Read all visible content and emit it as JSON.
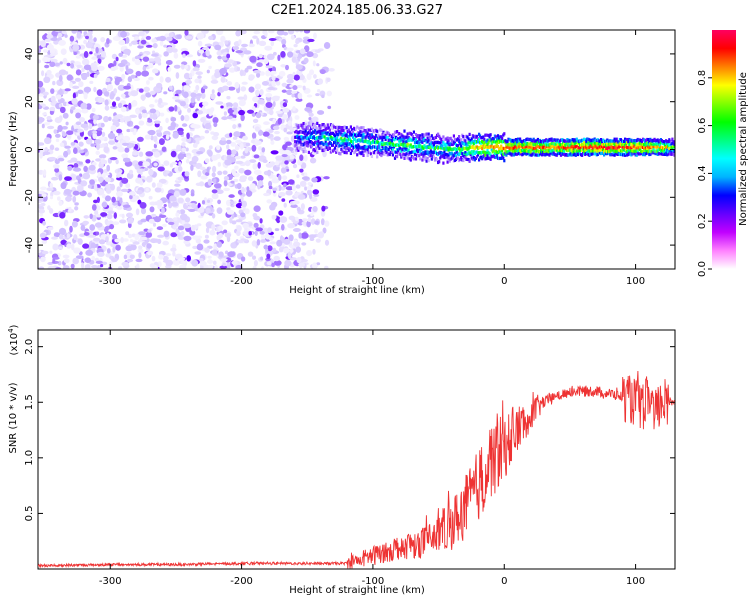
{
  "title": "C2E1.2024.185.06.33.G27",
  "chart_data": [
    {
      "type": "heatmap",
      "xlabel": "Height of straight line (km)",
      "ylabel": "Frequency (Hz)",
      "xlim": [
        -355,
        130
      ],
      "ylim": [
        -50,
        50
      ],
      "xticks": [
        -300,
        -200,
        -100,
        0,
        100
      ],
      "yticks": [
        -40,
        -20,
        0,
        20,
        40
      ],
      "colorbar": {
        "label": "Normalized spectral amplitude",
        "range": [
          0,
          1
        ],
        "ticks": [
          0.0,
          0.2,
          0.4,
          0.6,
          0.8
        ],
        "tick_labels": [
          "0.0",
          "0.2",
          "0.4",
          "0.6",
          "0.8"
        ],
        "colormap": [
          "#ffffff",
          "#c8b4ff",
          "#6400ff",
          "#0000ff",
          "#00ffff",
          "#00ff00",
          "#ffff00",
          "#ff8000",
          "#ff0000",
          "#ff0080"
        ]
      },
      "noise_region": {
        "x": [
          -355,
          -130
        ],
        "level": 0.15
      },
      "signal_track": {
        "x": [
          -160,
          -140,
          -120,
          -100,
          -80,
          -60,
          -40,
          -20,
          0,
          20,
          40,
          60,
          80,
          100,
          120,
          130
        ],
        "freq": [
          5,
          5,
          4,
          3,
          2,
          1,
          0,
          1,
          1,
          1,
          1,
          1,
          1,
          1,
          1,
          1
        ],
        "amplitude": [
          0.3,
          0.45,
          0.5,
          0.45,
          0.55,
          0.5,
          0.5,
          0.7,
          0.8,
          0.8,
          0.8,
          0.85,
          0.9,
          0.8,
          0.75,
          0.5
        ]
      }
    },
    {
      "type": "line",
      "xlabel": "Height of straight line (km)",
      "ylabel": "SNR (10 * v/v)",
      "y_scale_label": "(x10",
      "y_scale_exp": "4",
      "y_scale_close": ")",
      "xlim": [
        -355,
        130
      ],
      "ylim": [
        0,
        2.15
      ],
      "xticks": [
        -300,
        -200,
        -100,
        0,
        100
      ],
      "yticks": [
        0.5,
        1.0,
        1.5,
        2.0
      ],
      "ytick_labels": [
        "0.5",
        "1.0",
        "1.5",
        "2.0"
      ],
      "color": "#ee3333",
      "series": [
        {
          "x": [
            -355,
            -300,
            -250,
            -200,
            -150,
            -120,
            -100,
            -80,
            -60,
            -40,
            -30,
            -20,
            -10,
            -5,
            0,
            10,
            20,
            30,
            40,
            50,
            60,
            70,
            80,
            90,
            100,
            105,
            110,
            115,
            120,
            130
          ],
          "y": [
            0.03,
            0.04,
            0.04,
            0.05,
            0.05,
            0.05,
            0.12,
            0.2,
            0.25,
            0.4,
            0.55,
            0.75,
            0.95,
            1.1,
            1.1,
            1.25,
            1.4,
            1.5,
            1.55,
            1.6,
            1.6,
            1.6,
            1.58,
            1.55,
            1.5,
            1.45,
            1.55,
            1.4,
            1.5,
            1.52
          ]
        }
      ]
    }
  ]
}
